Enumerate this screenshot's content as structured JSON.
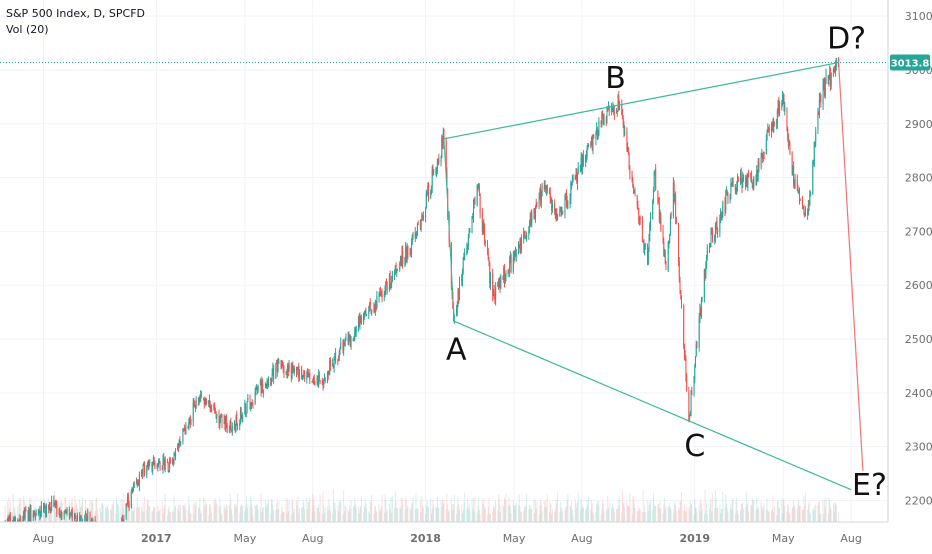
{
  "legend": {
    "symbol": "S&P 500 Index, D, SPCFD",
    "volume": "Vol (20)"
  },
  "colors": {
    "up": "#26a69a",
    "down": "#ef5350",
    "pattern": "#3cb89a",
    "projection": "#ef5350",
    "price_line": "#26a69a",
    "grid": "#f0f3fa",
    "axis_text": "#6f6f6f"
  },
  "chart_data": {
    "type": "candlestick",
    "symbol": "S&P 500 Index",
    "interval": "D",
    "source": "SPCFD",
    "ylim": [
      2160,
      3130
    ],
    "y_ticks": [
      3100.0,
      3000.0,
      2900.0,
      2800.0,
      2700.0,
      2600.0,
      2500.0,
      2400.0,
      2300.0,
      2200.0
    ],
    "y_tick_labels": [
      "3100.0",
      "3000.0",
      "2900.0",
      "2800.0",
      "2700.0",
      "2600.0",
      "2500.0",
      "2400.0",
      "2300.0",
      "2200.0"
    ],
    "xlim": [
      "2016-06-03",
      "2019-09-20"
    ],
    "x_ticks": [
      "2016-08-01",
      "2017-01-01",
      "2017-05-01",
      "2017-08-01",
      "2018-01-01",
      "2018-05-01",
      "2018-08-01",
      "2019-01-01",
      "2019-05-01",
      "2019-08-01"
    ],
    "x_tick_labels": [
      "Aug",
      "2017",
      "May",
      "Aug",
      "2018",
      "May",
      "Aug",
      "2019",
      "May",
      "Aug"
    ],
    "last_price": 3013.8,
    "last_price_label": "3013.8",
    "price_path": [
      [
        "2016-06-10",
        2160
      ],
      [
        "2016-07-20",
        2175
      ],
      [
        "2016-08-15",
        2190
      ],
      [
        "2016-09-09",
        2165
      ],
      [
        "2016-10-01",
        2170
      ],
      [
        "2016-11-04",
        2085
      ],
      [
        "2016-11-20",
        2185
      ],
      [
        "2016-12-20",
        2270
      ],
      [
        "2017-01-20",
        2270
      ],
      [
        "2017-03-01",
        2395
      ],
      [
        "2017-04-13",
        2330
      ],
      [
        "2017-05-15",
        2400
      ],
      [
        "2017-06-19",
        2450
      ],
      [
        "2017-08-11",
        2420
      ],
      [
        "2017-09-20",
        2505
      ],
      [
        "2017-11-01",
        2580
      ],
      [
        "2017-12-18",
        2690
      ],
      [
        "2018-01-26",
        2872
      ],
      [
        "2018-02-08",
        2533
      ],
      [
        "2018-03-12",
        2785
      ],
      [
        "2018-04-02",
        2580
      ],
      [
        "2018-05-01",
        2650
      ],
      [
        "2018-06-12",
        2785
      ],
      [
        "2018-06-28",
        2720
      ],
      [
        "2018-08-29",
        2914
      ],
      [
        "2018-09-21",
        2940
      ],
      [
        "2018-10-10",
        2770
      ],
      [
        "2018-10-29",
        2640
      ],
      [
        "2018-11-07",
        2810
      ],
      [
        "2018-11-23",
        2630
      ],
      [
        "2018-12-03",
        2790
      ],
      [
        "2018-12-24",
        2350
      ],
      [
        "2019-01-18",
        2670
      ],
      [
        "2019-02-22",
        2790
      ],
      [
        "2019-03-22",
        2800
      ],
      [
        "2019-04-30",
        2950
      ],
      [
        "2019-05-13",
        2810
      ],
      [
        "2019-06-03",
        2730
      ],
      [
        "2019-06-20",
        2955
      ],
      [
        "2019-07-15",
        3013.8
      ]
    ],
    "pattern_points": [
      {
        "label": "A",
        "date": "2018-02-09",
        "value": 2533
      },
      {
        "label": "B",
        "date": "2018-09-21",
        "value": 2940
      },
      {
        "label": "C",
        "date": "2018-12-24",
        "value": 2350
      },
      {
        "label": "D?",
        "date": "2019-07-15",
        "value": 3013.8
      },
      {
        "label": "E?",
        "date": "2019-08-15",
        "value": 2255
      }
    ],
    "trendlines": [
      {
        "from": {
          "date": "2018-01-26",
          "value": 2872
        },
        "to": {
          "date": "2019-07-15",
          "value": 3013.8
        }
      },
      {
        "from": {
          "date": "2018-02-09",
          "value": 2533
        },
        "to": {
          "date": "2019-08-01",
          "value": 2220
        }
      }
    ],
    "projection": {
      "from": {
        "date": "2019-07-15",
        "value": 3013.8
      },
      "to": {
        "date": "2019-08-17",
        "value": 2255
      }
    },
    "volume": {
      "name": "Vol (20)",
      "profile": [
        0.3,
        0.45,
        0.35,
        0.5,
        0.4,
        0.55,
        0.3,
        0.6,
        0.45,
        0.35
      ]
    }
  }
}
